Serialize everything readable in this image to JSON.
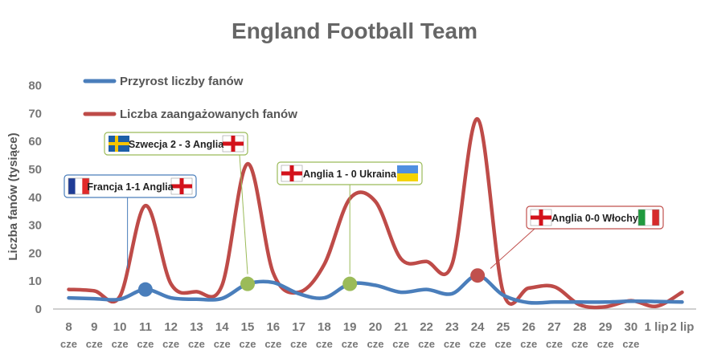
{
  "chart_data": {
    "type": "line",
    "title": "England Football Team",
    "ylabel": "Liczba fanów (tysiące)",
    "xlabel": "",
    "ylim": [
      0,
      80
    ],
    "yticks": [
      0,
      10,
      20,
      30,
      40,
      50,
      60,
      70,
      80
    ],
    "grid": false,
    "legend_position": "top-left",
    "categories": [
      {
        "day": "8",
        "month": "cze"
      },
      {
        "day": "9",
        "month": "cze"
      },
      {
        "day": "10",
        "month": "cze"
      },
      {
        "day": "11",
        "month": "cze"
      },
      {
        "day": "12",
        "month": "cze"
      },
      {
        "day": "13",
        "month": "cze"
      },
      {
        "day": "14",
        "month": "cze"
      },
      {
        "day": "15",
        "month": "cze"
      },
      {
        "day": "16",
        "month": "cze"
      },
      {
        "day": "17",
        "month": "cze"
      },
      {
        "day": "18",
        "month": "cze"
      },
      {
        "day": "19",
        "month": "cze"
      },
      {
        "day": "20",
        "month": "cze"
      },
      {
        "day": "21",
        "month": "cze"
      },
      {
        "day": "22",
        "month": "cze"
      },
      {
        "day": "23",
        "month": "cze"
      },
      {
        "day": "24",
        "month": "cze"
      },
      {
        "day": "25",
        "month": "cze"
      },
      {
        "day": "26",
        "month": "cze"
      },
      {
        "day": "27",
        "month": "cze"
      },
      {
        "day": "28",
        "month": "cze"
      },
      {
        "day": "29",
        "month": "cze"
      },
      {
        "day": "30",
        "month": "cze"
      },
      {
        "day": "1 lip",
        "month": ""
      },
      {
        "day": "2 lip",
        "month": ""
      }
    ],
    "series": [
      {
        "name": "Przyrost liczby fanów",
        "color": "#4a7ebb",
        "values": [
          4,
          3.7,
          3.5,
          7,
          4,
          3.5,
          3.8,
          9,
          9.5,
          5.5,
          4,
          9,
          8.5,
          6,
          7,
          5.5,
          12,
          5,
          2.3,
          2.5,
          2.5,
          2.5,
          2.8,
          2.7,
          2.5
        ]
      },
      {
        "name": "Liczba zaangażowanych fanów",
        "color": "#be4b48",
        "values": [
          7,
          6.5,
          4.5,
          37,
          9,
          6.2,
          8.5,
          52,
          13,
          6,
          16,
          39.5,
          38.5,
          18,
          17,
          16,
          68,
          6,
          7.5,
          8,
          1.5,
          0.8,
          3,
          1,
          6
        ]
      }
    ],
    "markers": [
      {
        "index": 3,
        "series": 0,
        "color": "#4a7ebb"
      },
      {
        "index": 7,
        "series": 0,
        "color": "#9bbb59"
      },
      {
        "index": 11,
        "series": 0,
        "color": "#9bbb59"
      },
      {
        "index": 16,
        "series": 0,
        "color": "#c0504d"
      }
    ],
    "annotations": [
      {
        "text": "Francja 1-1 Anglia",
        "index": 3,
        "flags": [
          "france",
          "england"
        ],
        "border": "#4a7ebb"
      },
      {
        "text": "Szwecja 2 - 3 Anglia",
        "index": 7,
        "flags": [
          "sweden",
          "england"
        ],
        "border": "#9bbb59"
      },
      {
        "text": "Anglia 1 - 0 Ukraina",
        "index": 11,
        "flags": [
          "england",
          "ukraine"
        ],
        "border": "#9bbb59"
      },
      {
        "text": "Anglia 0-0 Włochy",
        "index": 16,
        "flags": [
          "england",
          "italy"
        ],
        "border": "#c0504d"
      }
    ]
  }
}
